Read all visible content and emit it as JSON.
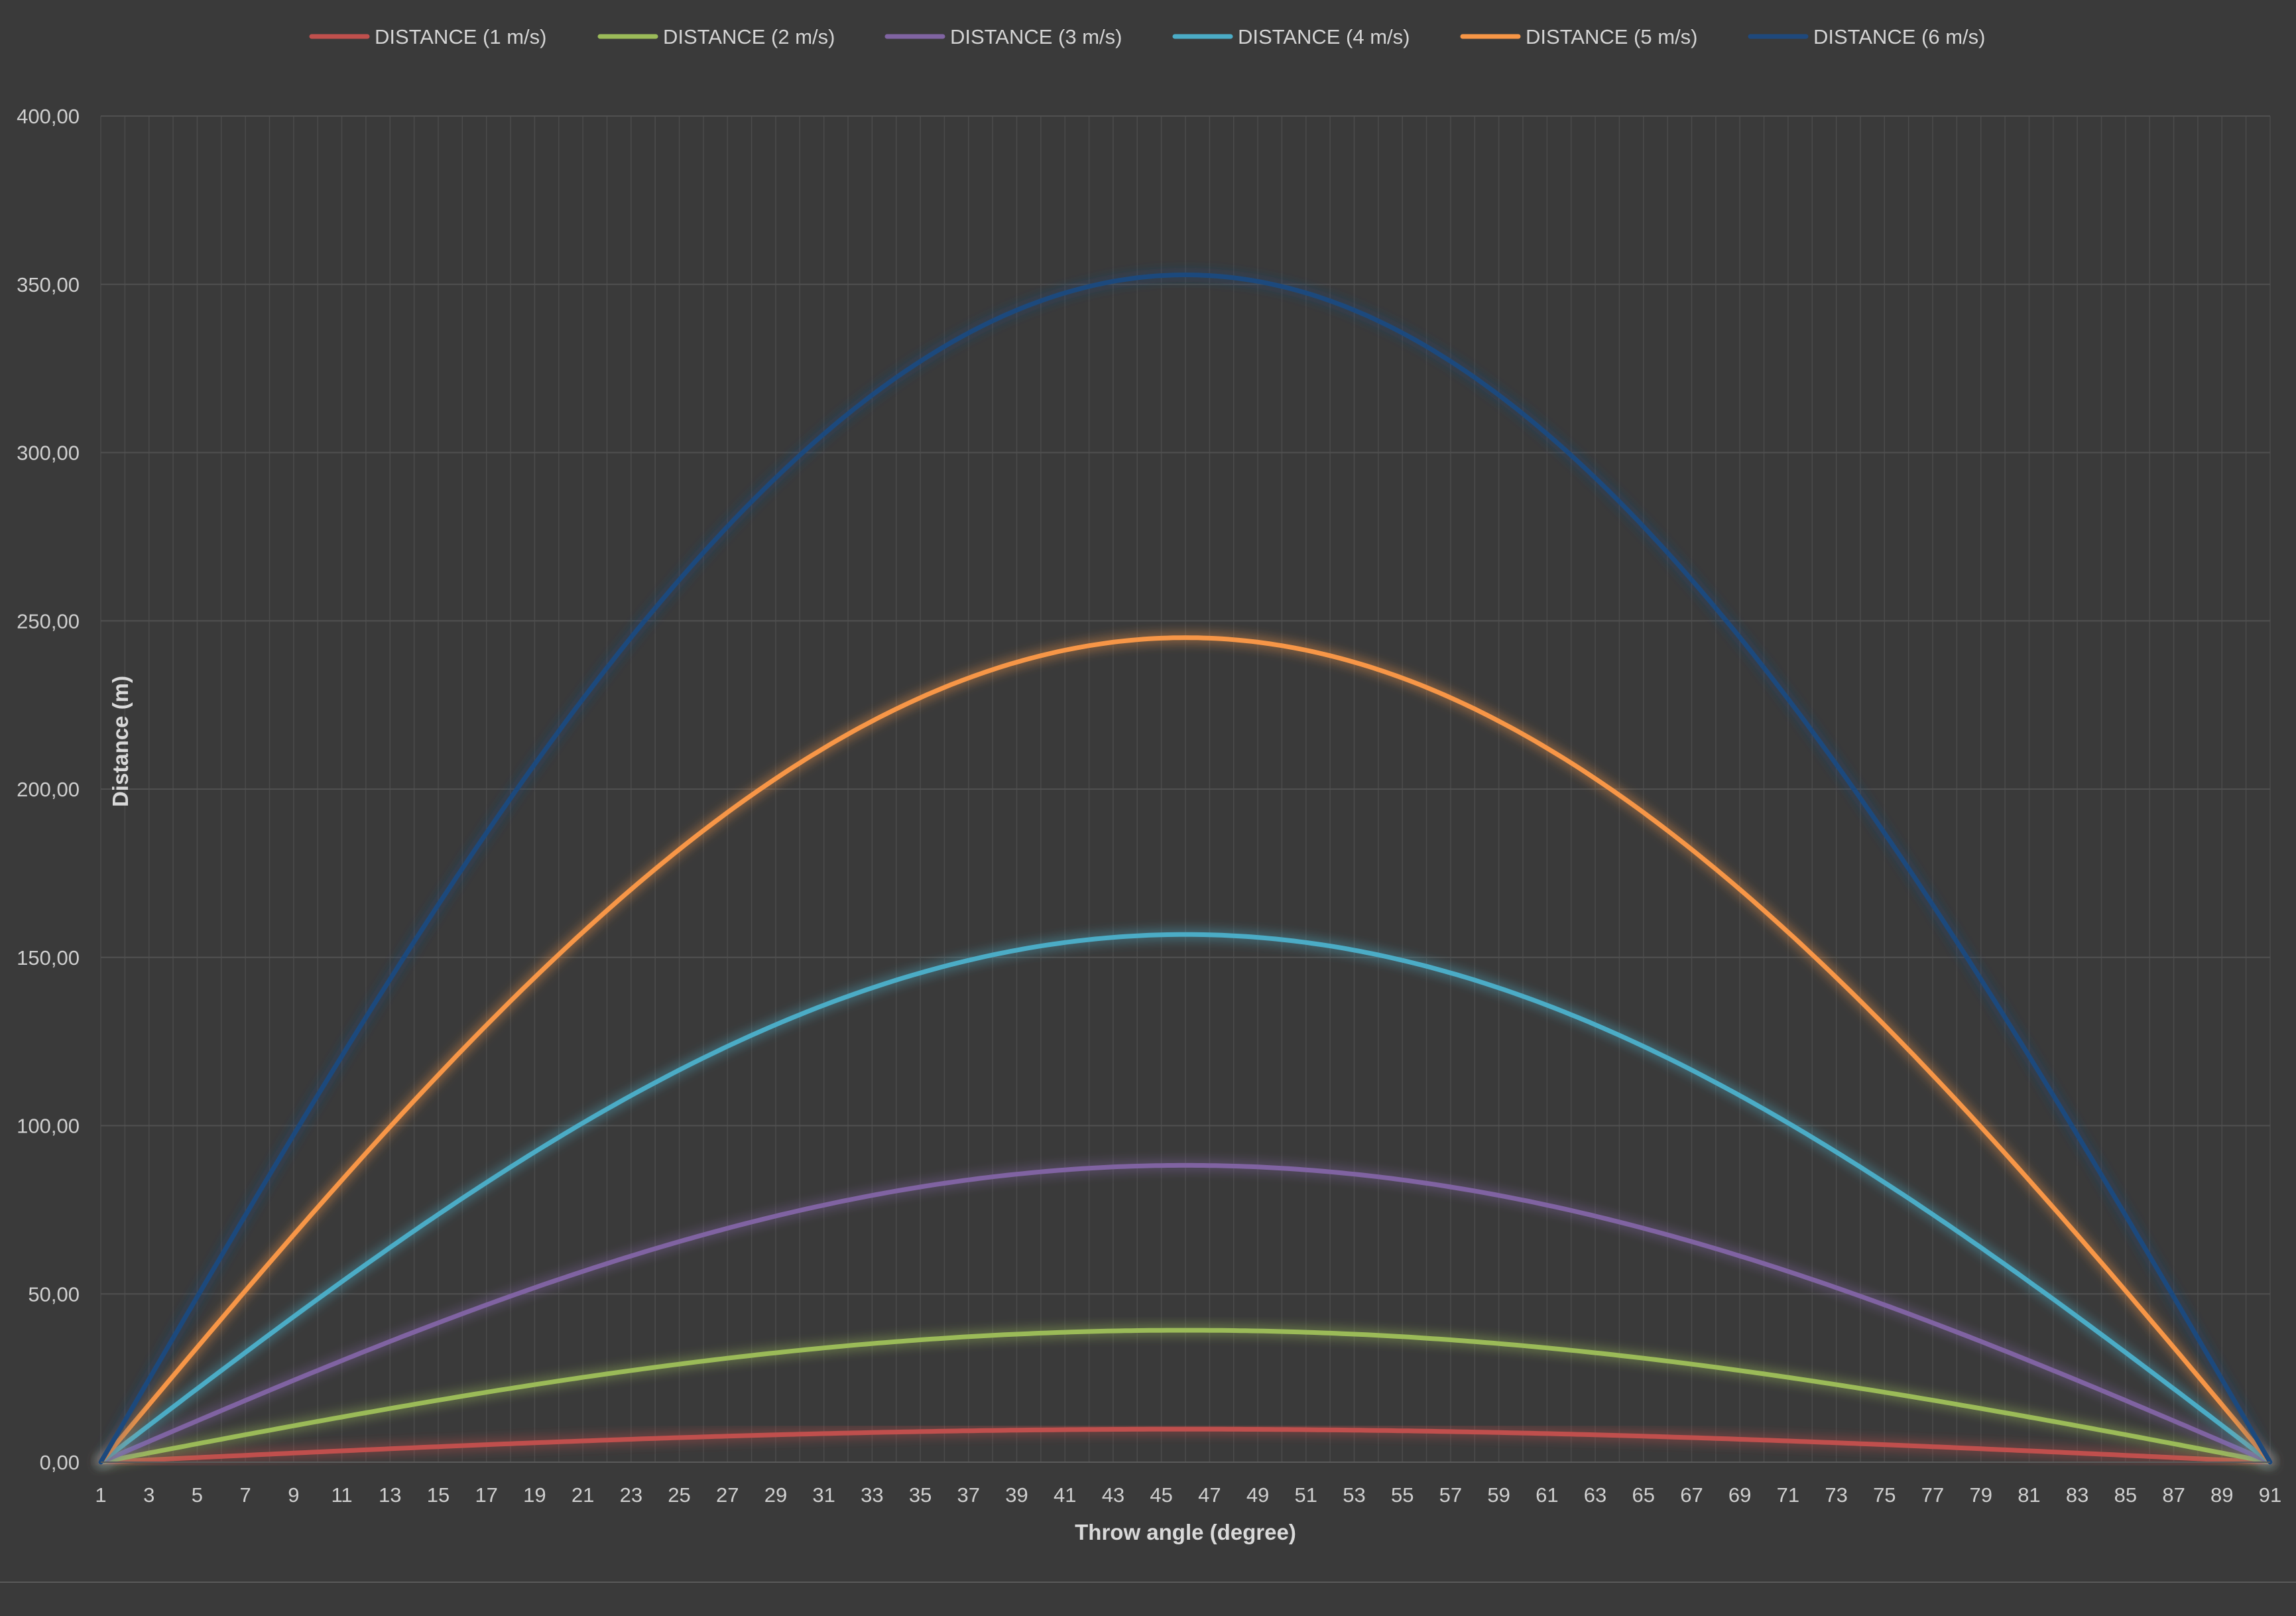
{
  "chart_data": {
    "type": "line",
    "title": "",
    "xlabel": "Throw angle (degree)",
    "ylabel": "Distance (m)",
    "x_start": 1,
    "x_end": 91,
    "x_tick_labels": [
      "1",
      "3",
      "5",
      "7",
      "9",
      "11",
      "13",
      "15",
      "17",
      "19",
      "21",
      "23",
      "25",
      "27",
      "29",
      "31",
      "33",
      "35",
      "37",
      "39",
      "41",
      "43",
      "45",
      "47",
      "49",
      "51",
      "53",
      "55",
      "57",
      "59",
      "61",
      "63",
      "65",
      "67",
      "69",
      "71",
      "73",
      "75",
      "77",
      "79",
      "81",
      "83",
      "85",
      "87",
      "89",
      "91"
    ],
    "y_tick_labels": [
      "0,00",
      "50,00",
      "100,00",
      "150,00",
      "200,00",
      "250,00",
      "300,00",
      "350,00",
      "400,00"
    ],
    "ylim": [
      0,
      400
    ],
    "grid": true,
    "legend_position": "top",
    "series": [
      {
        "name": "DISTANCE (1 m/s)",
        "color": "#c0504d",
        "peak_x": 46,
        "peak_y": 9.8
      },
      {
        "name": "DISTANCE (2 m/s)",
        "color": "#9bbb59",
        "peak_x": 46,
        "peak_y": 39.2
      },
      {
        "name": "DISTANCE (3 m/s)",
        "color": "#8064a2",
        "peak_x": 46,
        "peak_y": 88.2
      },
      {
        "name": "DISTANCE (4 m/s)",
        "color": "#4bacc6",
        "peak_x": 46,
        "peak_y": 156.8
      },
      {
        "name": "DISTANCE (5 m/s)",
        "color": "#f79646",
        "peak_x": 46,
        "peak_y": 245
      },
      {
        "name": "DISTANCE (6 m/s)",
        "color": "#1f497d",
        "peak_x": 46,
        "peak_y": 352.8
      }
    ],
    "series_shape": "distance = peak_y * sin(2 * (x - 1) degrees)"
  }
}
